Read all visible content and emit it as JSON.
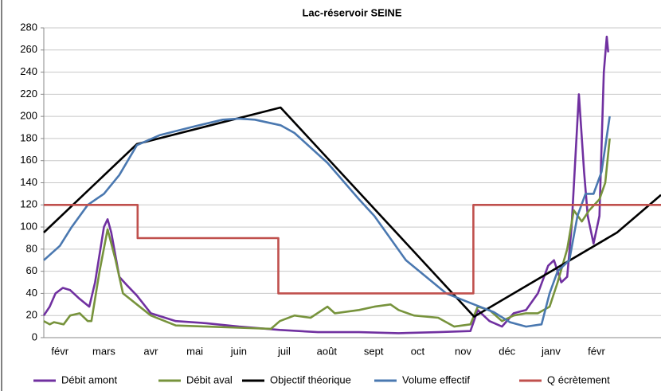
{
  "chart_data": {
    "type": "line",
    "title": "Lac-réservoir SEINE",
    "xlim": [
      0,
      421
    ],
    "ylim": [
      0,
      280
    ],
    "yticks": [
      0,
      20,
      40,
      60,
      80,
      100,
      120,
      140,
      160,
      180,
      200,
      220,
      240,
      260,
      280
    ],
    "xticks": [
      {
        "value": 11,
        "label": "févr"
      },
      {
        "value": 41,
        "label": "mars"
      },
      {
        "value": 73,
        "label": "avr"
      },
      {
        "value": 103,
        "label": "mai"
      },
      {
        "value": 133,
        "label": "juin"
      },
      {
        "value": 164,
        "label": "juil"
      },
      {
        "value": 193,
        "label": "août"
      },
      {
        "value": 225,
        "label": "sept"
      },
      {
        "value": 255,
        "label": "oct"
      },
      {
        "value": 286,
        "label": "nov"
      },
      {
        "value": 316,
        "label": "déc"
      },
      {
        "value": 346,
        "label": "janv"
      },
      {
        "value": 377,
        "label": "févr"
      }
    ],
    "grid": true,
    "legend": "bottom",
    "series": [
      {
        "name": "Débit amont",
        "color": "#7030a0",
        "x": [
          0,
          4,
          8,
          13,
          18,
          24.5,
          31,
          35,
          41,
          43.5,
          46,
          51.5,
          57,
          63.5,
          73,
          90,
          111,
          133,
          161,
          187,
          215,
          242,
          269,
          291,
          296,
          304,
          312.5,
          320.5,
          329,
          337,
          344,
          348,
          353,
          357,
          360,
          365,
          368.5,
          371,
          375,
          379,
          382,
          384,
          385
        ],
        "values": [
          20,
          28,
          40,
          45,
          43,
          35,
          28,
          50,
          100,
          107,
          95,
          55,
          47,
          38,
          22,
          15,
          13,
          10,
          7,
          5,
          5,
          4,
          5,
          6,
          25,
          15,
          10,
          22,
          25,
          40,
          65,
          70,
          50,
          55,
          100,
          220,
          150,
          110,
          85,
          110,
          240,
          272,
          258
        ]
      },
      {
        "name": "Débit aval",
        "color": "#77933c",
        "x": [
          0,
          4,
          7,
          13.5,
          18,
          24.5,
          30,
          32.5,
          38,
          43.5,
          49,
          54,
          63.5,
          73,
          90,
          111,
          133,
          155,
          161,
          171,
          182,
          193.5,
          198.5,
          215,
          225.5,
          236.5,
          242,
          252.5,
          269,
          280,
          291,
          296,
          304,
          312.5,
          320.5,
          329,
          337,
          345,
          350.5,
          357,
          361.5,
          367,
          372,
          379,
          383,
          386
        ],
        "values": [
          15,
          12,
          14,
          12,
          20,
          22,
          15,
          15,
          60,
          98,
          70,
          40,
          30,
          20,
          11,
          10,
          9,
          8,
          15,
          20,
          18,
          28,
          22,
          25,
          28,
          30,
          25,
          20,
          18,
          10,
          12,
          28,
          25,
          15,
          20,
          22,
          22,
          28,
          50,
          80,
          115,
          105,
          115,
          125,
          140,
          180
        ]
      },
      {
        "name": "Objectif théorique",
        "color": "#000000",
        "x": [
          0,
          63.5,
          161.5,
          293.5,
          391,
          421
        ],
        "values": [
          95,
          175,
          208,
          19,
          95,
          129
        ]
      },
      {
        "name": "Volume effectif",
        "color": "#4a78b0",
        "x": [
          0,
          11,
          19,
          30,
          41,
          51.5,
          63.5,
          79,
          103,
          122,
          133,
          144,
          161.5,
          171,
          193.5,
          215,
          225.5,
          247,
          263.5,
          274.5,
          293.5,
          307,
          318,
          329,
          339.5,
          345,
          350.5,
          358.5,
          364,
          369.5,
          375,
          380.5,
          386
        ],
        "values": [
          70,
          83,
          100,
          120,
          130,
          147,
          174,
          183,
          191,
          197,
          198,
          197,
          192,
          185,
          158,
          125,
          110,
          70,
          52,
          40,
          30,
          23,
          14,
          10,
          12,
          40,
          60,
          70,
          110,
          130,
          130,
          150,
          200
        ]
      },
      {
        "name": "Q écrètement",
        "color": "#c0504d",
        "x": [
          0,
          64,
          64,
          160,
          160,
          293,
          293,
          421
        ],
        "values": [
          120,
          120,
          90,
          90,
          40,
          40,
          120,
          120
        ]
      }
    ]
  }
}
